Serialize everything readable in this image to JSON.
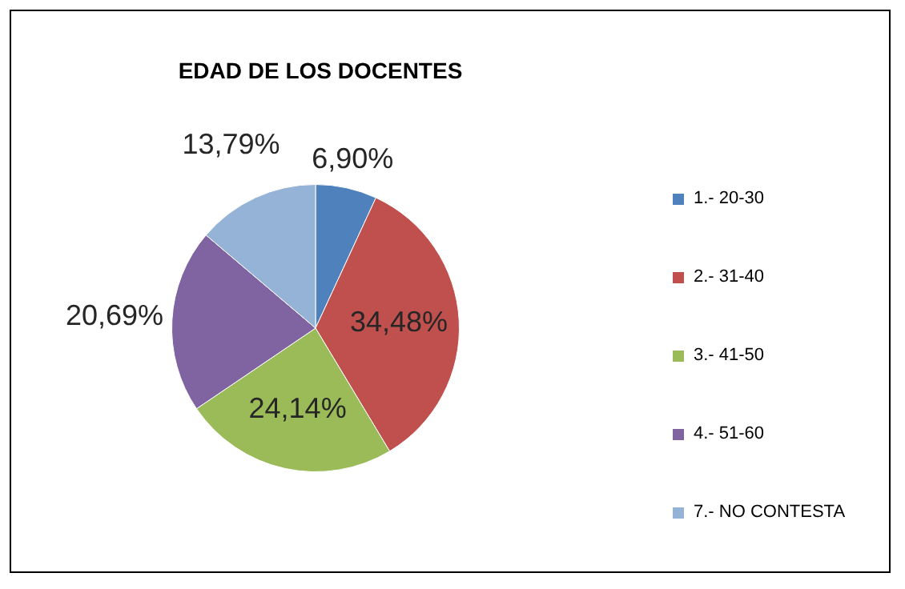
{
  "chart_data": {
    "type": "pie",
    "title": "EDAD DE LOS DOCENTES",
    "categories": [
      "1.- 20-30",
      "2.- 31-40",
      "3.- 41-50",
      "4.- 51-60",
      "7.- NO CONTESTA"
    ],
    "values": [
      6.9,
      34.48,
      24.14,
      20.69,
      13.79
    ],
    "colors": [
      "#4f81bd",
      "#c0504d",
      "#9bbb59",
      "#8064a2",
      "#95b3d7"
    ],
    "value_labels": [
      "6,90%",
      "34,48%",
      "24,14%",
      "20,69%",
      "13,79%"
    ],
    "legend": "right"
  }
}
